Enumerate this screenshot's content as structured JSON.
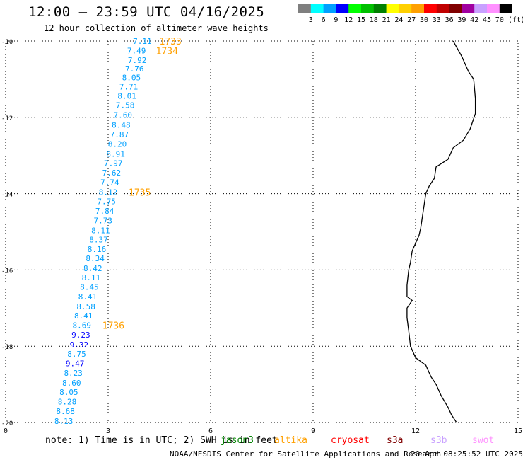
{
  "header": {
    "title": "12:00 – 23:59 UTC 04/16/2025",
    "subtitle": "12 hour collection of altimeter wave heights"
  },
  "legend": {
    "colors": [
      "#7f7f7f",
      "#00ffff",
      "#00a0ff",
      "#0000ff",
      "#00ff00",
      "#00c000",
      "#008000",
      "#ffff00",
      "#ffd000",
      "#ffa000",
      "#ff0000",
      "#c00000",
      "#800000",
      "#a000a0",
      "#c8a0ff",
      "#ff90ff",
      "#000000"
    ],
    "labels": [
      "3",
      "6",
      "9",
      "12",
      "15",
      "18",
      "21",
      "24",
      "27",
      "30",
      "33",
      "36",
      "39",
      "42",
      "45",
      "70 (ft)"
    ]
  },
  "axes": {
    "x_ticks": [
      "0",
      "3",
      "6",
      "9",
      "12",
      "15"
    ],
    "y_ticks": [
      "-10",
      "-12",
      "-14",
      "-16",
      "-18",
      "-20"
    ]
  },
  "measurements": [
    {
      "value": "7.11",
      "lon": 4.0,
      "lat": -10.0,
      "color": "#00a0ff"
    },
    {
      "value": "7.49",
      "lon": 3.83,
      "lat": -10.25,
      "color": "#00a0ff"
    },
    {
      "value": "7.92",
      "lon": 3.85,
      "lat": -10.5,
      "color": "#00a0ff"
    },
    {
      "value": "7.76",
      "lon": 3.77,
      "lat": -10.72,
      "color": "#00a0ff"
    },
    {
      "value": "8.05",
      "lon": 3.68,
      "lat": -10.96,
      "color": "#00a0ff"
    },
    {
      "value": "7.71",
      "lon": 3.6,
      "lat": -11.2,
      "color": "#00a0ff"
    },
    {
      "value": "8.01",
      "lon": 3.55,
      "lat": -11.44,
      "color": "#00a0ff"
    },
    {
      "value": "7.58",
      "lon": 3.5,
      "lat": -11.68,
      "color": "#00a0ff"
    },
    {
      "value": "7.60",
      "lon": 3.43,
      "lat": -11.94,
      "color": "#00a0ff"
    },
    {
      "value": "8.48",
      "lon": 3.38,
      "lat": -12.2,
      "color": "#00a0ff"
    },
    {
      "value": "7.87",
      "lon": 3.33,
      "lat": -12.45,
      "color": "#00a0ff"
    },
    {
      "value": "8.20",
      "lon": 3.27,
      "lat": -12.7,
      "color": "#00a0ff"
    },
    {
      "value": "8.91",
      "lon": 3.22,
      "lat": -12.96,
      "color": "#00a0ff"
    },
    {
      "value": "7.97",
      "lon": 3.15,
      "lat": -13.2,
      "color": "#00a0ff"
    },
    {
      "value": "7.62",
      "lon": 3.1,
      "lat": -13.45,
      "color": "#00a0ff"
    },
    {
      "value": "7.74",
      "lon": 3.05,
      "lat": -13.7,
      "color": "#00a0ff"
    },
    {
      "value": "8.12",
      "lon": 3.0,
      "lat": -13.96,
      "color": "#00a0ff"
    },
    {
      "value": "7.75",
      "lon": 2.95,
      "lat": -14.2,
      "color": "#00a0ff"
    },
    {
      "value": "7.84",
      "lon": 2.9,
      "lat": -14.45,
      "color": "#00a0ff"
    },
    {
      "value": "7.73",
      "lon": 2.85,
      "lat": -14.7,
      "color": "#00a0ff"
    },
    {
      "value": "8.11",
      "lon": 2.78,
      "lat": -14.96,
      "color": "#00a0ff"
    },
    {
      "value": "8.37",
      "lon": 2.72,
      "lat": -15.2,
      "color": "#00a0ff"
    },
    {
      "value": "8.16",
      "lon": 2.67,
      "lat": -15.45,
      "color": "#00a0ff"
    },
    {
      "value": "8.34",
      "lon": 2.62,
      "lat": -15.7,
      "color": "#00a0ff"
    },
    {
      "value": "8.42",
      "lon": 2.55,
      "lat": -15.96,
      "color": "#00a0ff"
    },
    {
      "value": "8.11",
      "lon": 2.5,
      "lat": -16.2,
      "color": "#00a0ff"
    },
    {
      "value": "8.45",
      "lon": 2.45,
      "lat": -16.45,
      "color": "#00a0ff"
    },
    {
      "value": "8.41",
      "lon": 2.4,
      "lat": -16.7,
      "color": "#00a0ff"
    },
    {
      "value": "8.58",
      "lon": 2.35,
      "lat": -16.96,
      "color": "#00a0ff"
    },
    {
      "value": "8.41",
      "lon": 2.28,
      "lat": -17.2,
      "color": "#00a0ff"
    },
    {
      "value": "8.69",
      "lon": 2.23,
      "lat": -17.45,
      "color": "#00a0ff"
    },
    {
      "value": "9.23",
      "lon": 2.2,
      "lat": -17.7,
      "color": "#0000ff"
    },
    {
      "value": "9.32",
      "lon": 2.15,
      "lat": -17.96,
      "color": "#0000ff"
    },
    {
      "value": "8.75",
      "lon": 2.08,
      "lat": -18.2,
      "color": "#00a0ff"
    },
    {
      "value": "9.47",
      "lon": 2.03,
      "lat": -18.45,
      "color": "#0000ff"
    },
    {
      "value": "8.23",
      "lon": 1.98,
      "lat": -18.7,
      "color": "#00a0ff"
    },
    {
      "value": "8.60",
      "lon": 1.93,
      "lat": -18.96,
      "color": "#00a0ff"
    },
    {
      "value": "8.05",
      "lon": 1.85,
      "lat": -19.2,
      "color": "#00a0ff"
    },
    {
      "value": "8.28",
      "lon": 1.8,
      "lat": -19.45,
      "color": "#00a0ff"
    },
    {
      "value": "8.68",
      "lon": 1.75,
      "lat": -19.7,
      "color": "#00a0ff"
    },
    {
      "value": "8.13",
      "lon": 1.7,
      "lat": -19.96,
      "color": "#00a0ff"
    }
  ],
  "time_marks": [
    {
      "label": "1733",
      "lon": 4.5,
      "lat": -10.0
    },
    {
      "label": "1734",
      "lon": 4.4,
      "lat": -10.25
    },
    {
      "label": "1735",
      "lon": 3.6,
      "lat": -13.96
    },
    {
      "label": "1736",
      "lon": 2.83,
      "lat": -17.45
    }
  ],
  "time_mark_color": "#ffa000",
  "coastline": [
    [
      13.1,
      -10.0
    ],
    [
      13.35,
      -10.4
    ],
    [
      13.55,
      -10.8
    ],
    [
      13.7,
      -11.0
    ],
    [
      13.75,
      -11.5
    ],
    [
      13.75,
      -11.9
    ],
    [
      13.6,
      -12.3
    ],
    [
      13.4,
      -12.6
    ],
    [
      13.1,
      -12.8
    ],
    [
      12.95,
      -13.1
    ],
    [
      12.6,
      -13.3
    ],
    [
      12.55,
      -13.6
    ],
    [
      12.4,
      -13.8
    ],
    [
      12.3,
      -14.0
    ],
    [
      12.25,
      -14.3
    ],
    [
      12.2,
      -14.6
    ],
    [
      12.15,
      -14.9
    ],
    [
      12.1,
      -15.1
    ],
    [
      11.9,
      -15.5
    ],
    [
      11.85,
      -15.8
    ],
    [
      11.8,
      -16.0
    ],
    [
      11.75,
      -16.4
    ],
    [
      11.75,
      -16.7
    ],
    [
      11.9,
      -16.8
    ],
    [
      11.75,
      -17.0
    ],
    [
      11.75,
      -17.25
    ],
    [
      11.8,
      -17.6
    ],
    [
      11.85,
      -18.0
    ],
    [
      12.0,
      -18.3
    ],
    [
      12.3,
      -18.5
    ],
    [
      12.45,
      -18.8
    ],
    [
      12.6,
      -19.0
    ],
    [
      12.75,
      -19.3
    ],
    [
      12.95,
      -19.6
    ],
    [
      13.05,
      -19.8
    ],
    [
      13.2,
      -20.0
    ]
  ],
  "note": {
    "prefix": "note: 1) Time is in UTC; 2) SWH is in feet",
    "satellites": [
      {
        "name": "jason3",
        "color": "#008000"
      },
      {
        "name": "altika",
        "color": "#ffa000"
      },
      {
        "name": "cryosat",
        "color": "#ff0000"
      },
      {
        "name": "s3a",
        "color": "#800000"
      },
      {
        "name": "s3b",
        "color": "#c8a0ff"
      },
      {
        "name": "swot",
        "color": "#ff90ff"
      }
    ]
  },
  "footer": {
    "credit": "NOAA/NESDIS Center for Satellite Applications and Research",
    "timestamp": "20 Apr 08:25:52 UTC 2025"
  }
}
